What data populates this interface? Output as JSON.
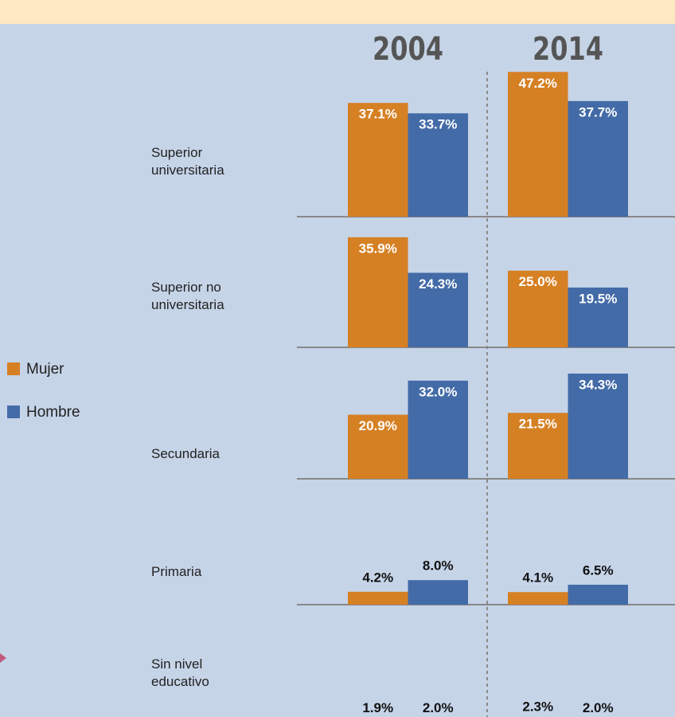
{
  "chart_data": {
    "type": "bar",
    "panels": [
      "2004",
      "2014"
    ],
    "categories": [
      "Superior universitaria",
      "Superior no universitaria",
      "Secundaria",
      "Primaria",
      "Sin nivel educativo"
    ],
    "series": [
      {
        "name": "Mujer",
        "color": "#d68024",
        "values": [
          [
            37.1,
            47.2
          ],
          [
            35.9,
            25.0
          ],
          [
            20.9,
            21.5
          ],
          [
            4.2,
            4.1
          ],
          [
            1.9,
            2.3
          ]
        ],
        "value_labels": [
          [
            "37.1%",
            "47.2%"
          ],
          [
            "35.9%",
            "25.0%"
          ],
          [
            "20.9%",
            "21.5%"
          ],
          [
            "4.2%",
            "4.1%"
          ],
          [
            "1.9%",
            "2.3%"
          ]
        ]
      },
      {
        "name": "Hombre",
        "color": "#436ba7",
        "values": [
          [
            33.7,
            37.7
          ],
          [
            24.3,
            19.5
          ],
          [
            32.0,
            34.3
          ],
          [
            8.0,
            6.5
          ],
          [
            2.0,
            2.0
          ]
        ],
        "value_labels": [
          [
            "33.7%",
            "37.7%"
          ],
          [
            "24.3%",
            "19.5%"
          ],
          [
            "32.0%",
            "34.3%"
          ],
          [
            "8.0%",
            "6.5%"
          ],
          [
            "2.0%",
            "2.0%"
          ]
        ]
      }
    ]
  }
}
